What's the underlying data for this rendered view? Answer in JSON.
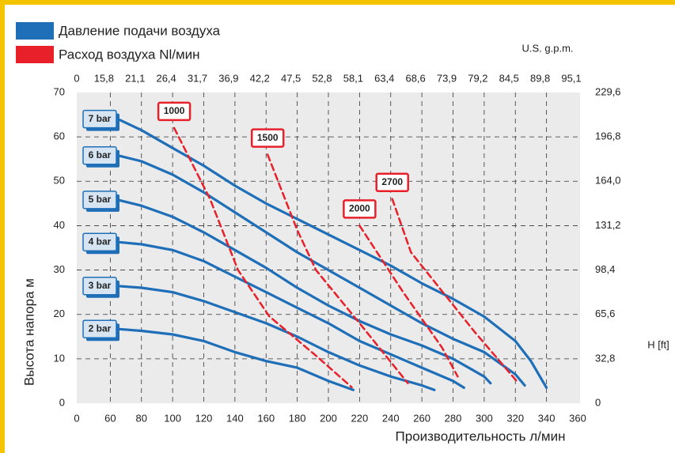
{
  "chart_data": {
    "type": "line",
    "legend": [
      {
        "name": "Давление подачи воздуха",
        "color": "#1f6fb8"
      },
      {
        "name": "Расход воздуха Nl/мин",
        "color": "#e8202a"
      }
    ],
    "xlabel": "Производительность л/мин",
    "ylabel": "Высота напора  м",
    "x2label": "U.S. g.p.m.",
    "y2label": "H [ft]",
    "xlim": [
      40,
      360
    ],
    "ylim": [
      0,
      70
    ],
    "y2lim": [
      0,
      229.6
    ],
    "grid": true,
    "xticks": [
      {
        "value": 40,
        "label": "0"
      },
      60,
      80,
      100,
      120,
      140,
      160,
      180,
      200,
      220,
      240,
      260,
      280,
      300,
      320,
      340,
      360
    ],
    "x2ticks": [
      {
        "value": 40,
        "label": "0"
      },
      {
        "value": 60,
        "label": "15,8"
      },
      {
        "value": 80,
        "label": "21,1"
      },
      {
        "value": 100,
        "label": "26,4"
      },
      {
        "value": 120,
        "label": "31,7"
      },
      {
        "value": 140,
        "label": "36,9"
      },
      {
        "value": 160,
        "label": "42,2"
      },
      {
        "value": 180,
        "label": "47,5"
      },
      {
        "value": 200,
        "label": "52,8"
      },
      {
        "value": 220,
        "label": "58,1"
      },
      {
        "value": 240,
        "label": "63,4"
      },
      {
        "value": 260,
        "label": "68,6"
      },
      {
        "value": 280,
        "label": "73,9"
      },
      {
        "value": 300,
        "label": "79,2"
      },
      {
        "value": 320,
        "label": "84,5"
      },
      {
        "value": 340,
        "label": "89,8"
      },
      {
        "value": 360,
        "label": "95,1"
      }
    ],
    "yticks": [
      0,
      10,
      20,
      30,
      40,
      50,
      60,
      70
    ],
    "y2ticks": [
      0,
      {
        "value": 32.8,
        "label": "32,8"
      },
      {
        "value": 65.6,
        "label": "65,6"
      },
      {
        "value": 98.4,
        "label": "98,4"
      },
      {
        "value": 131.2,
        "label": "131,2"
      },
      {
        "value": 164.0,
        "label": "164,0"
      },
      {
        "value": 196.8,
        "label": "196,8"
      },
      {
        "value": 229.6,
        "label": "229,6"
      }
    ],
    "series": [
      {
        "name": "7 bar",
        "color": "#1f6fb8",
        "style": "solid",
        "x": [
          65,
          80,
          100,
          120,
          140,
          160,
          180,
          200,
          220,
          240,
          260,
          280,
          300,
          320,
          330,
          340
        ],
        "values": [
          64,
          61.5,
          57.5,
          53.5,
          49,
          45,
          41.5,
          38,
          34.5,
          31,
          27,
          23.5,
          19.5,
          14,
          9.5,
          3.5
        ]
      },
      {
        "name": "6 bar",
        "color": "#1f6fb8",
        "style": "solid",
        "x": [
          65,
          80,
          100,
          120,
          140,
          160,
          180,
          200,
          220,
          240,
          260,
          280,
          300,
          320,
          326
        ],
        "values": [
          55.8,
          54.5,
          51.5,
          47.5,
          43,
          38.5,
          34,
          30,
          26,
          22,
          18,
          14.5,
          11.5,
          6.5,
          4
        ]
      },
      {
        "name": "5 bar",
        "color": "#1f6fb8",
        "style": "solid",
        "x": [
          65,
          80,
          100,
          120,
          140,
          160,
          180,
          200,
          220,
          240,
          260,
          280,
          300,
          304
        ],
        "values": [
          45.8,
          44.5,
          42,
          38.5,
          34.5,
          30.5,
          26,
          22,
          18.5,
          15.5,
          13,
          10,
          6,
          4.5
        ]
      },
      {
        "name": "4 bar",
        "color": "#1f6fb8",
        "style": "solid",
        "x": [
          65,
          80,
          100,
          120,
          140,
          160,
          180,
          200,
          220,
          240,
          260,
          280,
          287
        ],
        "values": [
          36.3,
          35.8,
          34.5,
          32,
          28.5,
          25,
          21.5,
          18,
          14,
          11,
          8,
          5,
          3.5
        ]
      },
      {
        "name": "3 bar",
        "color": "#1f6fb8",
        "style": "solid",
        "x": [
          65,
          80,
          100,
          120,
          140,
          160,
          180,
          200,
          220,
          240,
          260,
          268
        ],
        "values": [
          26.4,
          26,
          25,
          23,
          20.5,
          18,
          15,
          11.5,
          8.5,
          6,
          4,
          3
        ]
      },
      {
        "name": "2 bar",
        "color": "#1f6fb8",
        "style": "solid",
        "x": [
          65,
          80,
          100,
          120,
          140,
          160,
          180,
          200,
          216
        ],
        "values": [
          16.7,
          16.3,
          15.5,
          14,
          11.5,
          9.5,
          8,
          5,
          3
        ]
      },
      {
        "name": "1000",
        "color": "#e8202a",
        "style": "dashed",
        "x": [
          101,
          124,
          142,
          162,
          192,
          215
        ],
        "values": [
          62,
          46,
          30,
          19.6,
          10.7,
          3.6
        ]
      },
      {
        "name": "1500",
        "color": "#e8202a",
        "style": "dashed",
        "x": [
          161,
          180,
          192,
          220,
          251
        ],
        "values": [
          56,
          39,
          30,
          18,
          4.5
        ]
      },
      {
        "name": "2000",
        "color": "#e8202a",
        "style": "dashed",
        "x": [
          220,
          248,
          273,
          283
        ],
        "values": [
          40,
          25,
          12.5,
          6
        ]
      },
      {
        "name": "2700",
        "color": "#e8202a",
        "style": "dashed",
        "x": [
          241,
          253,
          294,
          322
        ],
        "values": [
          46,
          34,
          16,
          4.5
        ]
      }
    ]
  }
}
